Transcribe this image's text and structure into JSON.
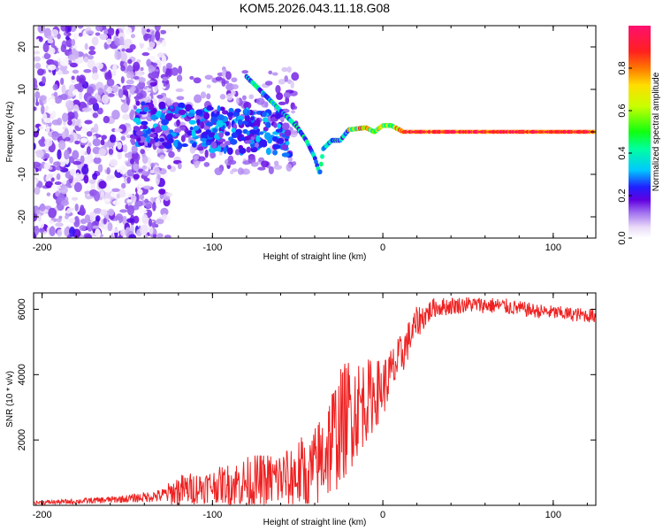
{
  "title": "KOM5.2026.043.11.18.G08",
  "chart_data": [
    {
      "type": "heatmap",
      "name": "spectrogram",
      "xlabel": "Height of straight line (km)",
      "ylabel": "Frequency (Hz)",
      "xlim": [
        -205,
        125
      ],
      "ylim": [
        -25,
        25
      ],
      "x_ticks": [
        -200,
        -100,
        0,
        100
      ],
      "x_tick_labels": [
        "-200",
        "-100",
        "0",
        "100"
      ],
      "y_ticks": [
        -20,
        -10,
        0,
        10,
        20
      ],
      "y_tick_labels": [
        "-20",
        "-10",
        "0",
        "10",
        "20"
      ],
      "colorbar": {
        "label": "Normalized spectral amplitude",
        "range": [
          0,
          1
        ],
        "ticks": [
          0.0,
          0.2,
          0.4,
          0.6,
          0.8
        ],
        "tick_labels": [
          "0.0",
          "0.2",
          "0.4",
          "0.6",
          "0.8"
        ]
      },
      "ridge": [
        {
          "x": -80,
          "f": 13
        },
        {
          "x": -70,
          "f": 9
        },
        {
          "x": -60,
          "f": 5
        },
        {
          "x": -50,
          "f": 1
        },
        {
          "x": -45,
          "f": -2
        },
        {
          "x": -40,
          "f": -6
        },
        {
          "x": -37,
          "f": -10
        },
        {
          "x": -35,
          "f": -4
        },
        {
          "x": -30,
          "f": -2
        },
        {
          "x": -25,
          "f": -2
        },
        {
          "x": -20,
          "f": 0.5
        },
        {
          "x": -10,
          "f": 1
        },
        {
          "x": -5,
          "f": 0
        },
        {
          "x": 0,
          "f": 1.5
        },
        {
          "x": 5,
          "f": 1.5
        },
        {
          "x": 12,
          "f": 0
        },
        {
          "x": 125,
          "f": 0
        }
      ]
    },
    {
      "type": "line",
      "name": "snr",
      "xlabel": "Height of straight line (km)",
      "ylabel": "SNR (10 * v/v)",
      "xlim": [
        -205,
        125
      ],
      "ylim": [
        0,
        6500
      ],
      "x_ticks": [
        -200,
        -100,
        0,
        100
      ],
      "x_tick_labels": [
        "-200",
        "-100",
        "0",
        "100"
      ],
      "y_ticks": [
        2000,
        4000,
        6000
      ],
      "y_tick_labels": [
        "2000",
        "4000",
        "6000"
      ],
      "color": "#ee2222",
      "envelope": [
        {
          "x": -205,
          "mean": 80,
          "spread": 60
        },
        {
          "x": -180,
          "mean": 120,
          "spread": 80
        },
        {
          "x": -150,
          "mean": 200,
          "spread": 120
        },
        {
          "x": -130,
          "mean": 300,
          "spread": 200
        },
        {
          "x": -120,
          "mean": 450,
          "spread": 500
        },
        {
          "x": -100,
          "mean": 600,
          "spread": 500
        },
        {
          "x": -80,
          "mean": 700,
          "spread": 800
        },
        {
          "x": -60,
          "mean": 800,
          "spread": 900
        },
        {
          "x": -40,
          "mean": 1100,
          "spread": 1300
        },
        {
          "x": -30,
          "mean": 2000,
          "spread": 1800
        },
        {
          "x": -20,
          "mean": 2800,
          "spread": 1800
        },
        {
          "x": -10,
          "mean": 3200,
          "spread": 1300
        },
        {
          "x": 0,
          "mean": 3600,
          "spread": 900
        },
        {
          "x": 10,
          "mean": 4500,
          "spread": 700
        },
        {
          "x": 20,
          "mean": 5600,
          "spread": 500
        },
        {
          "x": 30,
          "mean": 6050,
          "spread": 300
        },
        {
          "x": 50,
          "mean": 6150,
          "spread": 250
        },
        {
          "x": 70,
          "mean": 6100,
          "spread": 250
        },
        {
          "x": 90,
          "mean": 5950,
          "spread": 220
        },
        {
          "x": 110,
          "mean": 5850,
          "spread": 220
        },
        {
          "x": 125,
          "mean": 5800,
          "spread": 220
        }
      ]
    }
  ]
}
